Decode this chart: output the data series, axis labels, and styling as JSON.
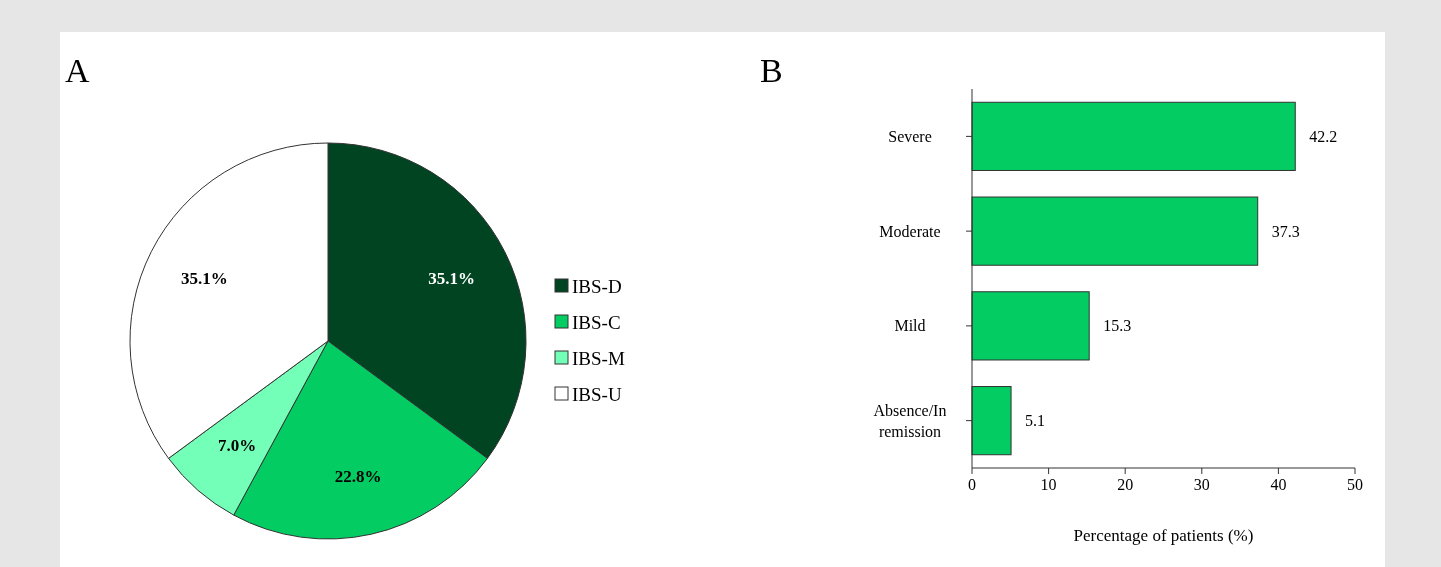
{
  "chart_data": [
    {
      "type": "pie",
      "title": "A",
      "categories": [
        "IBS-D",
        "IBS-C",
        "IBS-M",
        "IBS-U"
      ],
      "values": [
        35.1,
        22.8,
        7.0,
        35.1
      ],
      "colors": [
        "#014421",
        "#02cc62",
        "#74ffb8",
        "#ffffff"
      ],
      "value_labels": [
        "35.1%",
        "22.8%",
        "7.0%",
        "35.1%"
      ],
      "legend": "right"
    },
    {
      "type": "bar",
      "title": "B",
      "orientation": "horizontal",
      "categories": [
        "Severe",
        "Moderate",
        "Mild",
        "Absence/In remission"
      ],
      "values": [
        42.2,
        37.3,
        15.3,
        5.1
      ],
      "color": "#02cc62",
      "data_labels": true,
      "xlim": [
        0,
        50
      ],
      "xticks": [
        0,
        10,
        20,
        30,
        40,
        50
      ],
      "xlabel": "Percentage of patients (%)"
    }
  ]
}
